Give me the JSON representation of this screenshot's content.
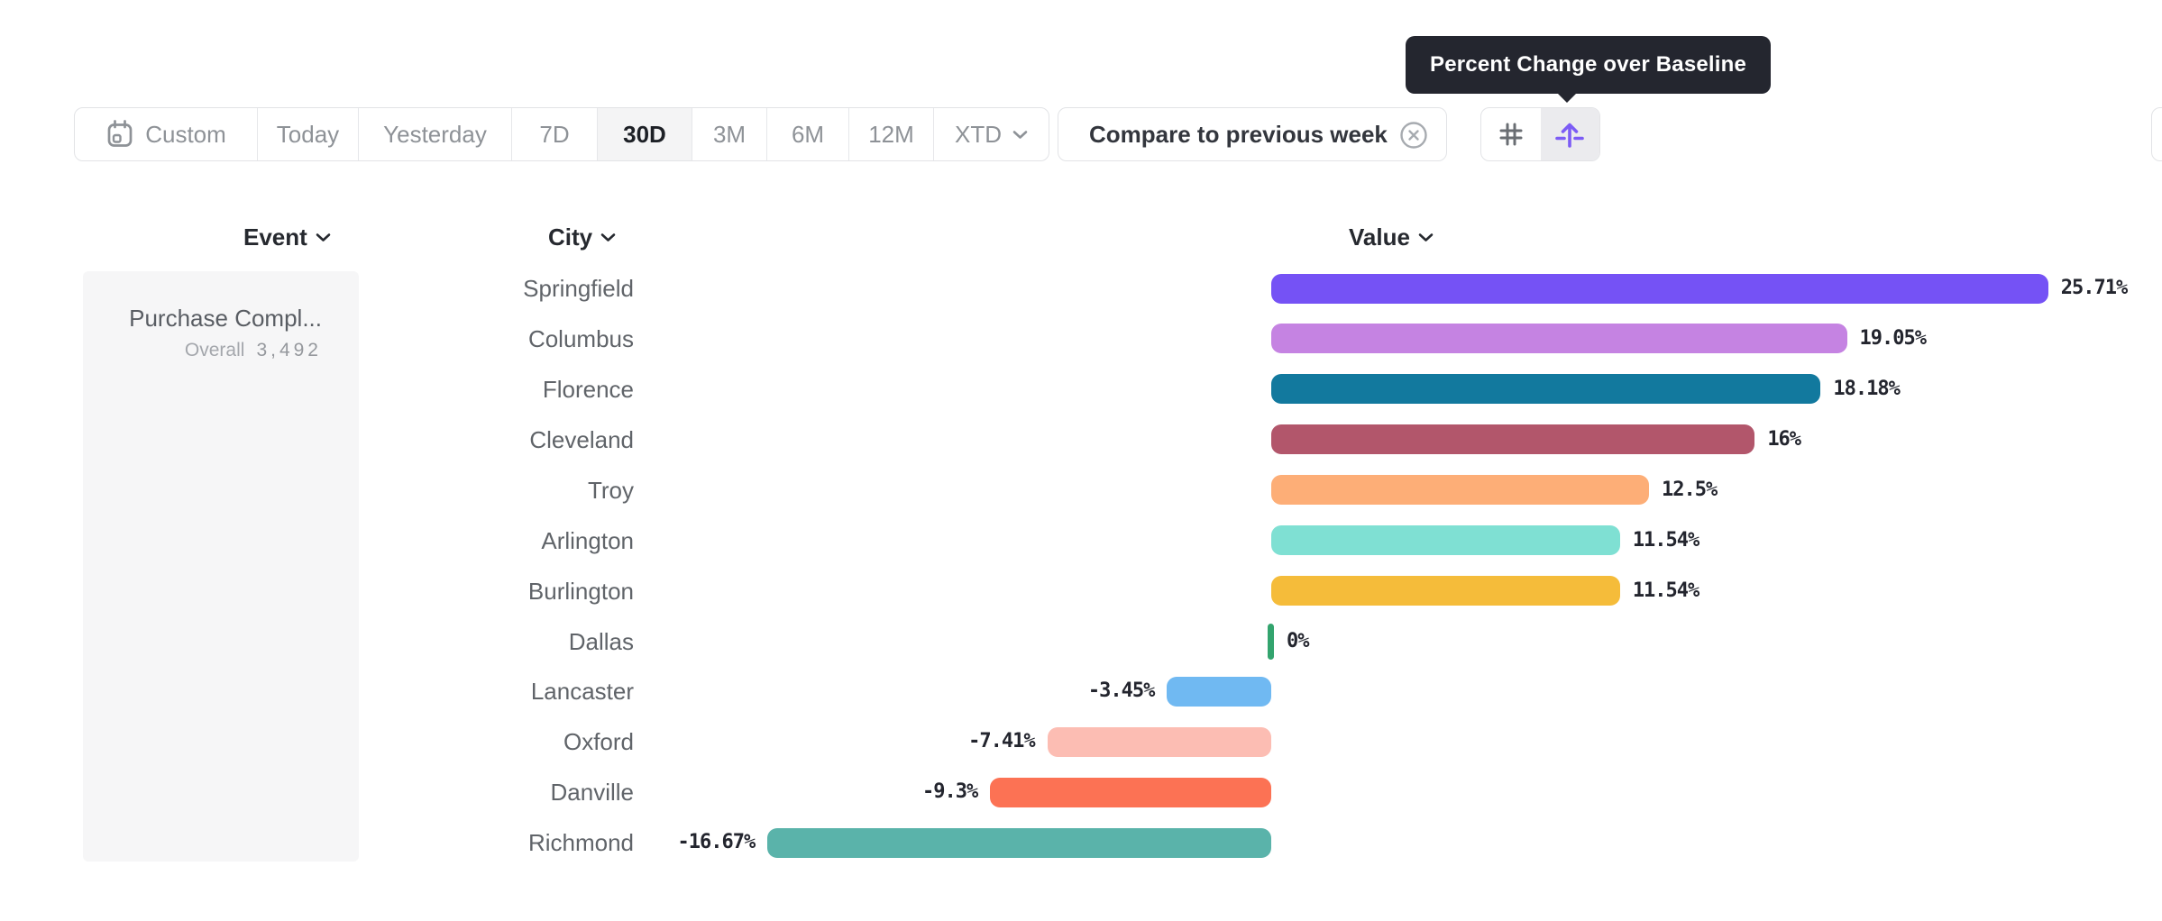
{
  "tooltip": {
    "text": "Percent Change over Baseline"
  },
  "toolbar": {
    "segments": [
      {
        "label": "Custom",
        "icon": "calendar",
        "selected": false
      },
      {
        "label": "Today",
        "selected": false
      },
      {
        "label": "Yesterday",
        "selected": false
      },
      {
        "label": "7D",
        "selected": false
      },
      {
        "label": "30D",
        "selected": true
      },
      {
        "label": "3M",
        "selected": false
      },
      {
        "label": "6M",
        "selected": false
      },
      {
        "label": "12M",
        "selected": false
      },
      {
        "label": "XTD",
        "selected": false,
        "chevron": true
      }
    ],
    "compare_chip": {
      "label": "Compare to previous week",
      "icon": "close-circle"
    },
    "view_toggle": {
      "options": [
        {
          "icon": "grid-hash-icon",
          "selected": false
        },
        {
          "icon": "percent-change-baseline-icon",
          "selected": true
        }
      ]
    }
  },
  "table_headers": {
    "event": "Event",
    "city": "City",
    "value": "Value"
  },
  "event_panel": {
    "event_name": "Purchase Compl...",
    "metric_label": "Overall",
    "metric_value": "3,492"
  },
  "chart_data": {
    "type": "bar",
    "orientation": "horizontal",
    "title": "Percent Change over Baseline",
    "unit": "%",
    "xlim": [
      -16.67,
      25.71
    ],
    "categories": [
      "Springfield",
      "Columbus",
      "Florence",
      "Cleveland",
      "Troy",
      "Arlington",
      "Burlington",
      "Dallas",
      "Lancaster",
      "Oxford",
      "Danville",
      "Richmond"
    ],
    "values": [
      25.71,
      19.05,
      18.18,
      16,
      12.5,
      11.54,
      11.54,
      0,
      -3.45,
      -7.41,
      -9.3,
      -16.67
    ],
    "value_labels": [
      "25.71%",
      "19.05%",
      "18.18%",
      "16%",
      "12.5%",
      "11.54%",
      "11.54%",
      "0%",
      "-3.45%",
      "-7.41%",
      "-9.3%",
      "-16.67%"
    ],
    "bar_colors": [
      "#7552f5",
      "#c583e2",
      "#12799e",
      "#b2566b",
      "#fdae77",
      "#7fe0d3",
      "#f5bc3a",
      "#33a46e",
      "#70b9f2",
      "#fcbdb3",
      "#fc7254",
      "#5ab3aa"
    ]
  },
  "theme": {
    "accent_purple": "#7c5cf5",
    "tooltip_bg": "#24262f",
    "zero_tick_green": "#33a46e",
    "border_gray": "#e2e3e6",
    "value_text": "#23252e"
  }
}
